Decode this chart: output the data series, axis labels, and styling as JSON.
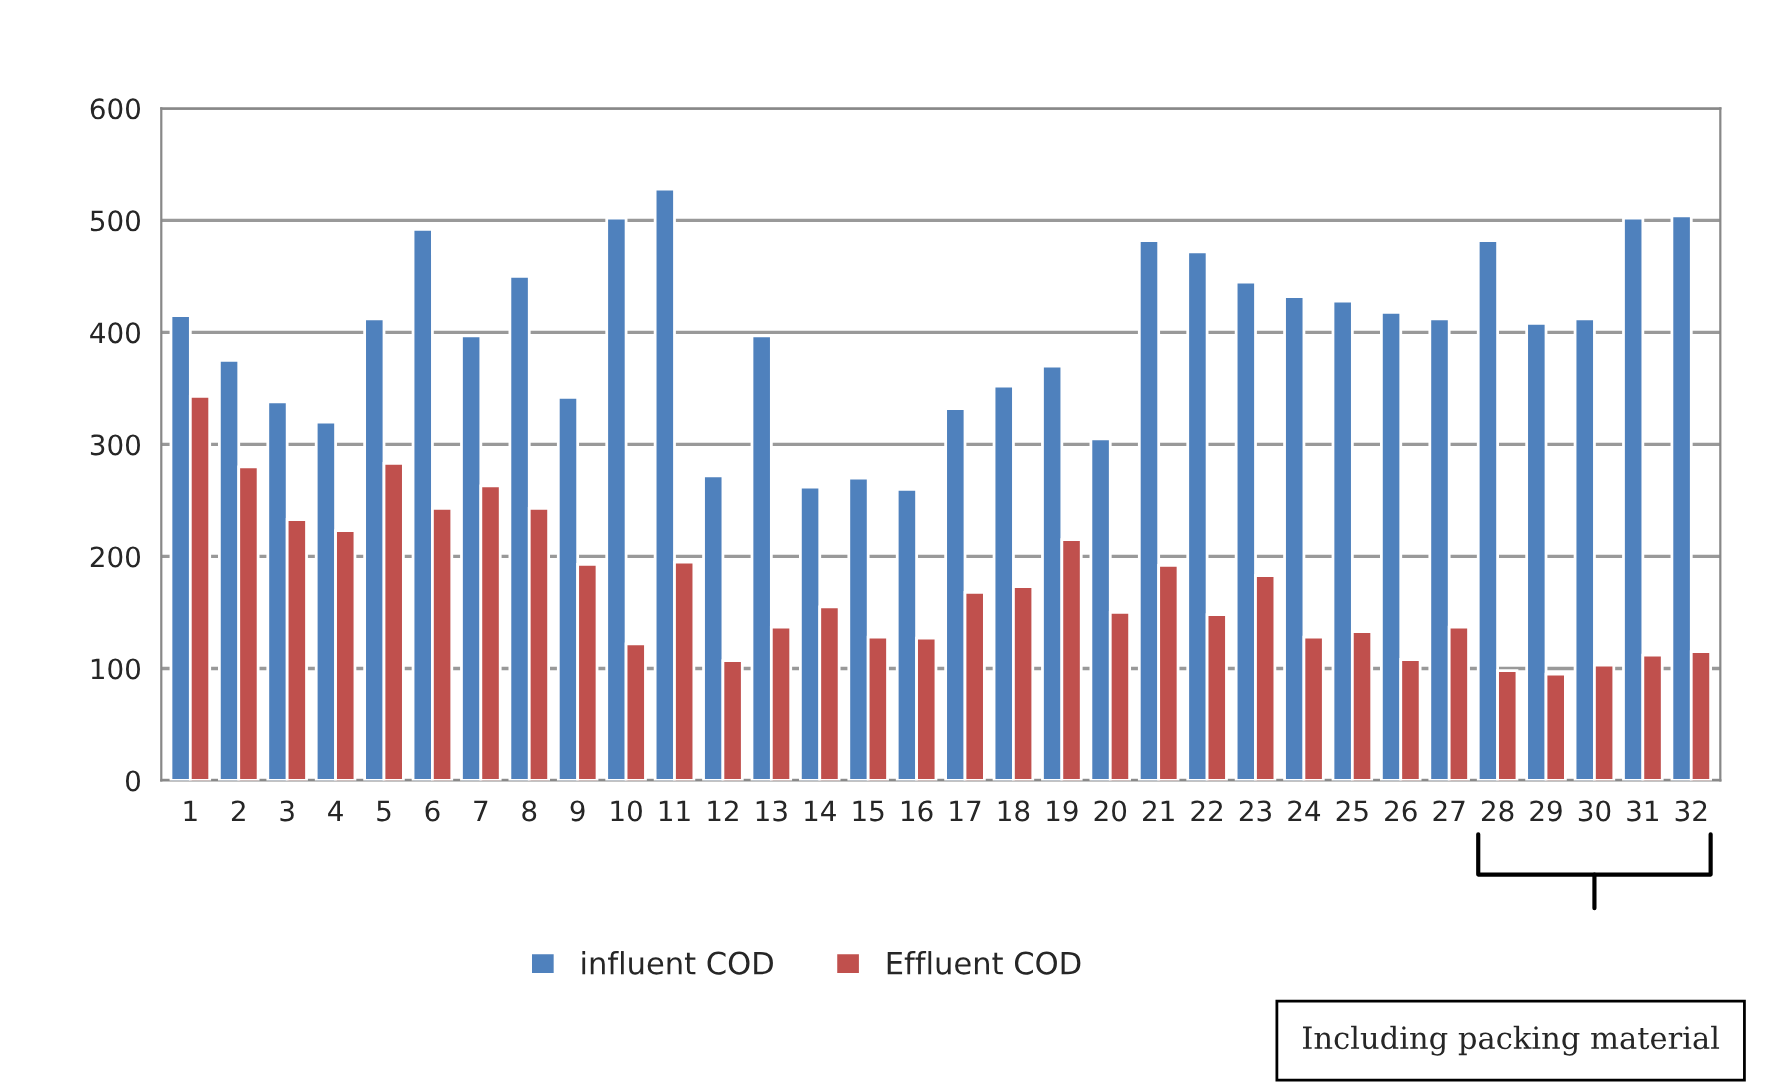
{
  "chart_data": {
    "type": "bar",
    "categories": [
      "1",
      "2",
      "3",
      "4",
      "5",
      "6",
      "7",
      "8",
      "9",
      "10",
      "11",
      "12",
      "13",
      "14",
      "15",
      "16",
      "17",
      "18",
      "19",
      "20",
      "21",
      "22",
      "23",
      "24",
      "25",
      "26",
      "27",
      "28",
      "29",
      "30",
      "31",
      "32"
    ],
    "series": [
      {
        "name": "influent COD",
        "color": "#4f81bd",
        "values": [
          415,
          375,
          338,
          320,
          412,
          492,
          397,
          450,
          342,
          502,
          528,
          272,
          397,
          262,
          270,
          260,
          332,
          352,
          370,
          305,
          482,
          472,
          445,
          432,
          428,
          418,
          412,
          482,
          408,
          412,
          502,
          504
        ]
      },
      {
        "name": "Effluent COD",
        "color": "#c0504d",
        "values": [
          343,
          280,
          233,
          223,
          283,
          243,
          263,
          243,
          193,
          122,
          195,
          107,
          137,
          155,
          128,
          127,
          168,
          173,
          215,
          150,
          192,
          148,
          183,
          128,
          133,
          108,
          137,
          98,
          95,
          103,
          112,
          115
        ]
      }
    ],
    "ylim": [
      0,
      600
    ],
    "yticks": [
      0,
      100,
      200,
      300,
      400,
      500,
      600
    ],
    "grid": "y",
    "legend": "bottom",
    "annotations": [
      "Including packing material"
    ]
  }
}
